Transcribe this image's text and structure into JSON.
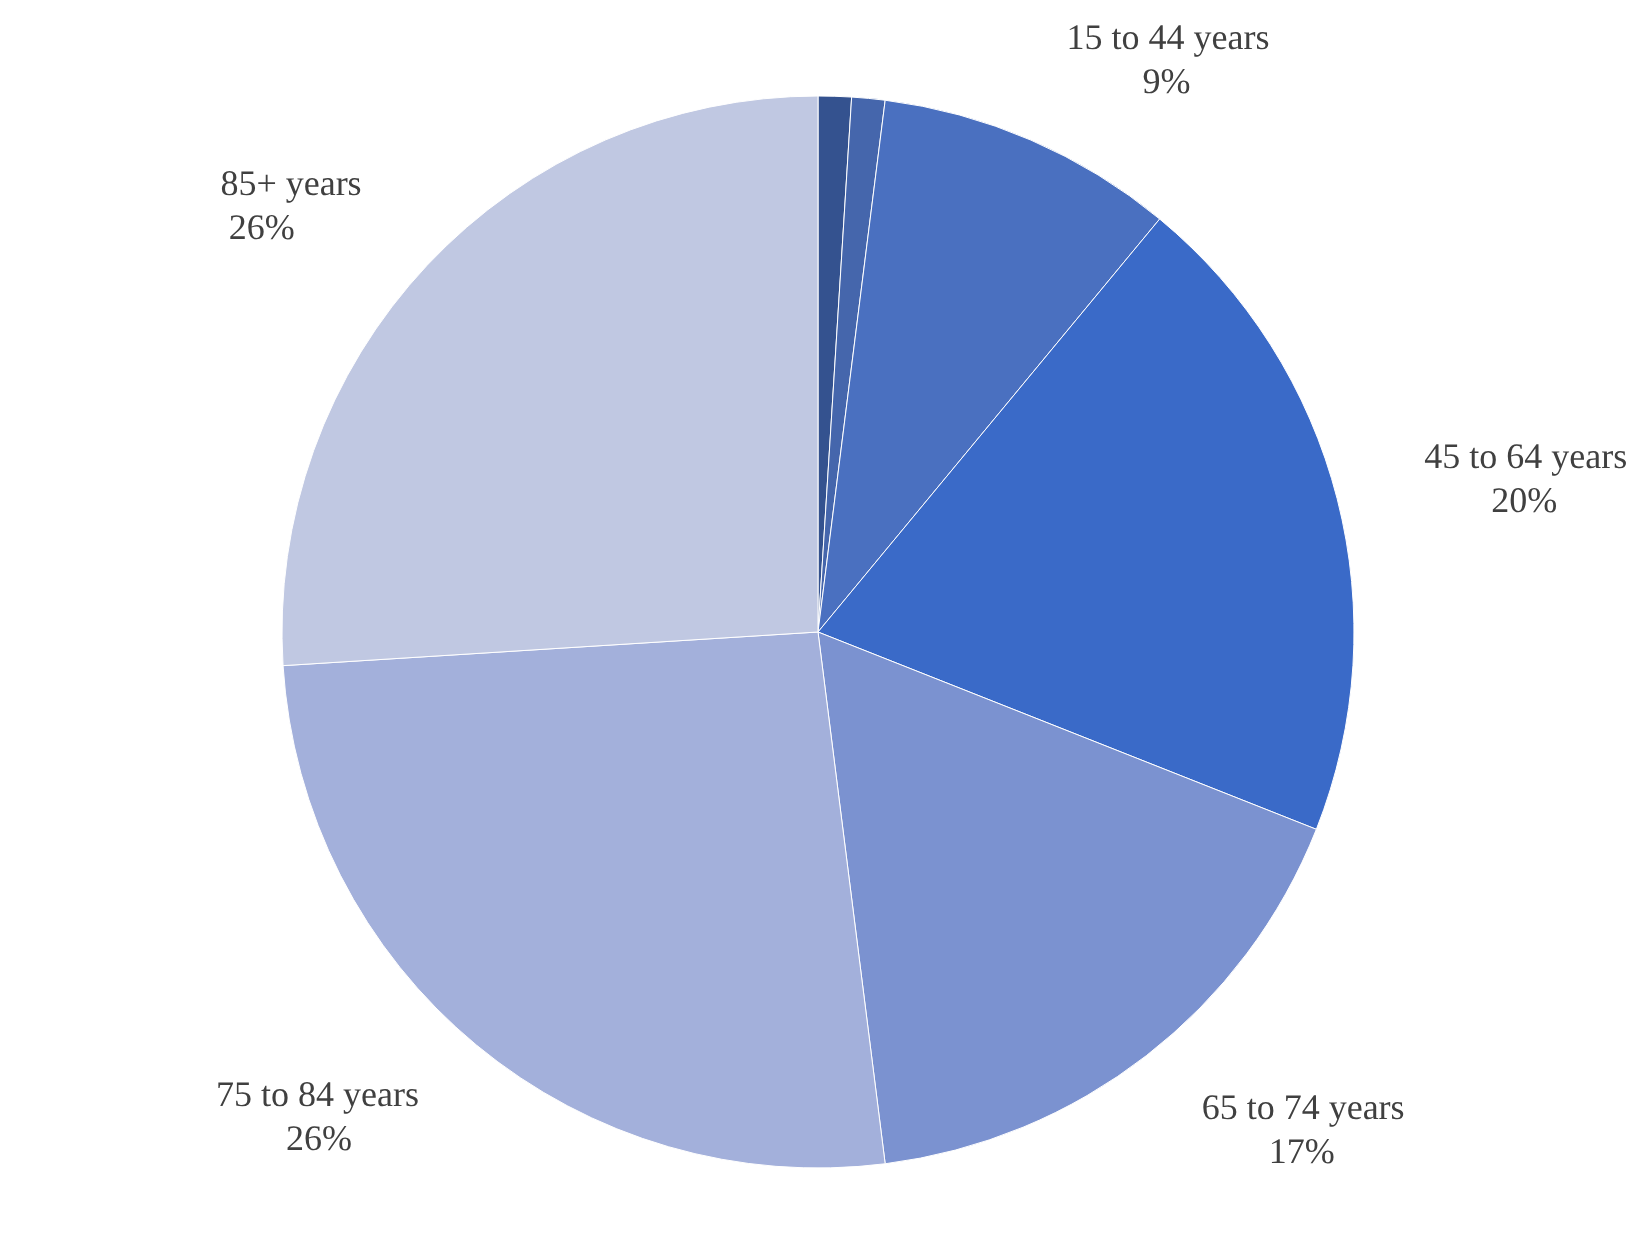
{
  "chart_data": {
    "type": "pie",
    "categories": [
      null,
      null,
      "15 to 44 years",
      "45 to 64 years",
      "65 to 74 years",
      "75 to 84 years",
      "85+  years"
    ],
    "values": [
      1,
      1,
      9,
      20,
      17,
      26,
      26
    ],
    "colors": [
      "#34528f",
      "#4566ac",
      "#4a70c0",
      "#3a6ac8",
      "#7b92d0",
      "#a3b0db",
      "#c0c8e2"
    ],
    "value_labels": [
      null,
      null,
      "9%",
      "20%",
      "17%",
      "26%",
      "26%"
    ],
    "legend": false
  }
}
